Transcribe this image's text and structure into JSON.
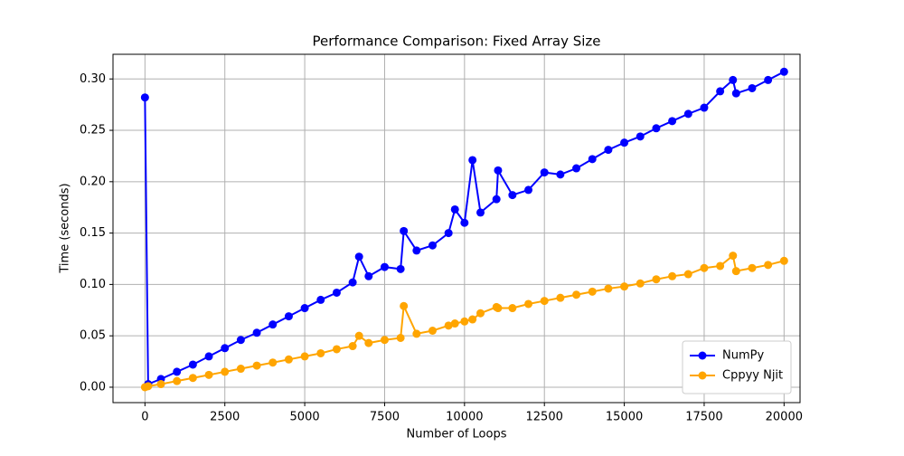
{
  "chart_data": {
    "type": "line",
    "title": "Performance Comparison: Fixed Array Size",
    "x_label": "Number of Loops",
    "y_label": "Time (seconds)",
    "x": [
      0,
      100,
      500,
      1000,
      1500,
      2000,
      2500,
      3000,
      3500,
      4000,
      4500,
      5000,
      5500,
      6000,
      6500,
      6700,
      7000,
      7500,
      8000,
      8100,
      8500,
      9000,
      9500,
      9700,
      10000,
      10250,
      10500,
      11000,
      11050,
      11500,
      12000,
      12500,
      13000,
      13500,
      14000,
      14500,
      15000,
      15500,
      16000,
      16500,
      17000,
      17500,
      18000,
      18400,
      18500,
      19000,
      19500,
      20000
    ],
    "series": [
      {
        "name": "NumPy",
        "color": "#0000ff",
        "values": [
          0.282,
          0.003,
          0.008,
          0.015,
          0.022,
          0.03,
          0.038,
          0.046,
          0.053,
          0.061,
          0.069,
          0.077,
          0.085,
          0.092,
          0.102,
          0.127,
          0.108,
          0.117,
          0.115,
          0.152,
          0.133,
          0.138,
          0.15,
          0.173,
          0.16,
          0.221,
          0.17,
          0.183,
          0.211,
          0.187,
          0.192,
          0.209,
          0.207,
          0.213,
          0.222,
          0.231,
          0.238,
          0.244,
          0.252,
          0.259,
          0.266,
          0.272,
          0.288,
          0.299,
          0.286,
          0.291,
          0.299,
          0.307
        ]
      },
      {
        "name": "Cppyy Njit",
        "color": "#ffa500",
        "values": [
          0.0,
          0.001,
          0.003,
          0.006,
          0.009,
          0.012,
          0.015,
          0.018,
          0.021,
          0.024,
          0.027,
          0.03,
          0.033,
          0.037,
          0.04,
          0.05,
          0.043,
          0.046,
          0.048,
          0.079,
          0.052,
          0.055,
          0.06,
          0.062,
          0.064,
          0.066,
          0.072,
          0.078,
          0.077,
          0.077,
          0.081,
          0.084,
          0.087,
          0.09,
          0.093,
          0.096,
          0.098,
          0.101,
          0.105,
          0.108,
          0.11,
          0.116,
          0.118,
          0.128,
          0.113,
          0.116,
          0.119,
          0.123
        ]
      }
    ],
    "xlim": [
      -1000,
      20500
    ],
    "ylim": [
      -0.015,
      0.324
    ],
    "xticks": [
      0,
      2500,
      5000,
      7500,
      10000,
      12500,
      15000,
      17500,
      20000
    ],
    "yticks": [
      {
        "value": 0,
        "label": "0.00"
      },
      {
        "value": 0.05,
        "label": "0.05"
      },
      {
        "value": 0.1,
        "label": "0.10"
      },
      {
        "value": 0.15,
        "label": "0.15"
      },
      {
        "value": 0.2,
        "label": "0.20"
      },
      {
        "value": 0.25,
        "label": "0.25"
      },
      {
        "value": 0.3,
        "label": "0.30"
      }
    ],
    "grid": true,
    "legend": "lower-right"
  }
}
